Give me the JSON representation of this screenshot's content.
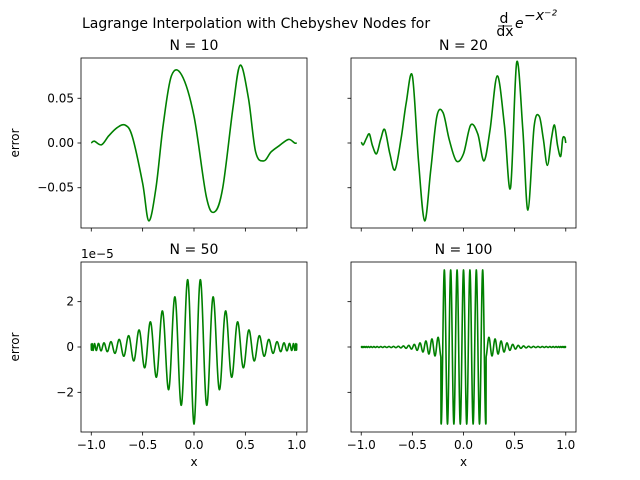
{
  "figure": {
    "title_main": "Lagrange Interpolation with Chebyshev Nodes for ",
    "title_frac_num": "d",
    "title_frac_den": "dx",
    "title_base": "e",
    "title_exponent": "−x⁻²"
  },
  "colors": {
    "line": "#008000",
    "axes": "#000000",
    "background": "#ffffff"
  },
  "chart_data": [
    {
      "type": "line",
      "title": "N = 10",
      "xlabel": "",
      "ylabel": "error",
      "xlim": [
        -1.1,
        1.1
      ],
      "ylim": [
        -0.095,
        0.095
      ],
      "grid": false,
      "yticks": [
        -0.05,
        0.0,
        0.05
      ],
      "ytick_labels": [
        "−0.05",
        "0.00",
        "0.05"
      ],
      "xticks": [
        -1.0,
        -0.5,
        0.0,
        0.5,
        1.0
      ],
      "xtick_labels": [],
      "y_offset_label": "",
      "series": [
        {
          "x": [
            -1.0,
            -0.97,
            -0.9,
            -0.83,
            -0.75,
            -0.67,
            -0.6,
            -0.5,
            -0.44,
            -0.37,
            -0.3,
            -0.22,
            -0.12,
            0.0,
            0.12,
            0.2,
            0.28,
            0.38,
            0.45,
            0.53,
            0.6,
            0.68,
            0.75,
            0.83,
            0.92,
            0.98,
            1.0
          ],
          "y": [
            0.0,
            0.002,
            -0.002,
            0.008,
            0.017,
            0.02,
            0.007,
            -0.045,
            -0.087,
            -0.05,
            0.02,
            0.075,
            0.076,
            0.03,
            -0.06,
            -0.077,
            -0.05,
            0.04,
            0.087,
            0.05,
            -0.01,
            -0.02,
            -0.01,
            -0.003,
            0.004,
            0.0,
            0.0
          ]
        }
      ]
    },
    {
      "type": "line",
      "title": "N = 20",
      "xlabel": "",
      "ylabel": "",
      "xlim": [
        -1.1,
        1.1
      ],
      "ylim": [
        -0.095,
        0.095
      ],
      "grid": false,
      "yticks": [
        -0.05,
        0.0,
        0.05
      ],
      "ytick_labels": [],
      "xticks": [
        -1.0,
        -0.5,
        0.0,
        0.5,
        1.0
      ],
      "xtick_labels": [],
      "y_offset_label": "",
      "series": [
        {
          "x": [
            -1.0,
            -0.98,
            -0.95,
            -0.92,
            -0.89,
            -0.85,
            -0.81,
            -0.77,
            -0.72,
            -0.67,
            -0.61,
            -0.56,
            -0.5,
            -0.44,
            -0.38,
            -0.32,
            -0.26,
            -0.2,
            -0.14,
            -0.07,
            0.0,
            0.07,
            0.14,
            0.2,
            0.26,
            0.33,
            0.4,
            0.46,
            0.52,
            0.58,
            0.63,
            0.69,
            0.74,
            0.78,
            0.82,
            0.86,
            0.89,
            0.92,
            0.95,
            0.97,
            0.99,
            1.0
          ],
          "y": [
            0.001,
            -0.002,
            0.005,
            0.01,
            -0.003,
            -0.012,
            0.004,
            0.015,
            -0.012,
            -0.03,
            0.005,
            0.045,
            0.075,
            -0.02,
            -0.087,
            -0.03,
            0.03,
            0.034,
            0.004,
            -0.02,
            -0.012,
            0.02,
            0.01,
            -0.02,
            0.015,
            0.075,
            0.02,
            -0.05,
            0.09,
            0.015,
            -0.075,
            0.018,
            0.03,
            0.005,
            -0.025,
            0.005,
            0.02,
            -0.003,
            -0.015,
            0.005,
            0.006,
            0.0
          ]
        }
      ]
    },
    {
      "type": "line",
      "title": "N = 50",
      "xlabel": "x",
      "ylabel": "error",
      "xlim": [
        -1.1,
        1.1
      ],
      "ylim": [
        -3.75,
        3.75
      ],
      "grid": false,
      "yticks": [
        -2,
        0,
        2
      ],
      "ytick_labels": [
        "−2",
        "0",
        "2"
      ],
      "xticks": [
        -1.0,
        -0.5,
        0.0,
        0.5,
        1.0
      ],
      "xtick_labels": [
        "−1.0",
        "−0.5",
        "0.0",
        "0.5",
        "1.0"
      ],
      "y_offset_label": "1e−5",
      "series": [
        {
          "fn": "chebyshev_error",
          "nodes": 50,
          "amp_center": 3.4,
          "amp_edge": 0.15,
          "scale": 1.0
        }
      ]
    },
    {
      "type": "line",
      "title": "N = 100",
      "xlabel": "x",
      "ylabel": "",
      "xlim": [
        -1.1,
        1.1
      ],
      "ylim": [
        -3.75,
        3.75
      ],
      "grid": false,
      "yticks": [
        -2,
        0,
        2
      ],
      "ytick_labels": [],
      "xticks": [
        -1.0,
        -0.5,
        0.0,
        0.5,
        1.0
      ],
      "xtick_labels": [
        "−1.0",
        "−0.5",
        "0.0",
        "0.5",
        "1.0"
      ],
      "y_offset_label": "",
      "series": [
        {
          "fn": "chebyshev_error_burst",
          "nodes": 100,
          "amp_center": 3.4,
          "amp_edge": 0.02,
          "burst_halfwidth": 0.22,
          "scale": 1.0
        }
      ]
    }
  ]
}
